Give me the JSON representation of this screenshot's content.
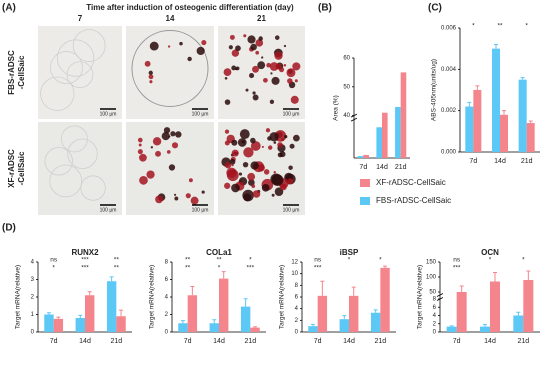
{
  "panel_labels": [
    "(A)",
    "(B)",
    "(C)",
    "(D)"
  ],
  "images": {
    "title": "Time after induction of osteogenic differentiation (day)",
    "columns": [
      "7",
      "14",
      "21"
    ],
    "rows": [
      [
        "FBS-rADSC",
        "-CellSaic"
      ],
      [
        "XF-rADSC",
        "-CellSaic"
      ]
    ],
    "scale_bar": "100 µm"
  },
  "chart_data": [
    {
      "type": "bar",
      "ylabel": "Area (%)",
      "categories": [
        "7d",
        "14d",
        "21d"
      ],
      "ylim": [
        0,
        60
      ],
      "ybreak": [
        10,
        40
      ],
      "yticks": [
        40,
        50,
        60
      ],
      "series": [
        {
          "name": "FBS-rADSC-CellSaic",
          "color": "#5bc8f5",
          "values": [
            0.5,
            8,
            43
          ]
        },
        {
          "name": "XF-rADSC-CellSaic",
          "color": "#f4858c",
          "values": [
            0.8,
            41,
            55
          ]
        }
      ]
    },
    {
      "type": "bar",
      "ylabel": "ABS-405nm(units/ug)",
      "categories": [
        "7d",
        "14d",
        "21d"
      ],
      "ylim": [
        0,
        0.006
      ],
      "yticks": [
        {
          "value": 0,
          "label": "0.000"
        },
        {
          "value": 0.002,
          "label": "0.002"
        },
        {
          "value": 0.004,
          "label": "0.004"
        },
        {
          "value": 0.006,
          "label": "0.006"
        }
      ],
      "series": [
        {
          "name": "FBS-rADSC-CellSaic",
          "color": "#5bc8f5",
          "values": [
            0.0022,
            0.005,
            0.0035
          ],
          "errors": [
            0.0002,
            0.0002,
            0.0001
          ]
        },
        {
          "name": "XF-rADSC-CellSaic",
          "color": "#f4858c",
          "values": [
            0.003,
            0.0018,
            0.0014
          ],
          "errors": [
            0.0002,
            0.0002,
            0.0001
          ]
        }
      ],
      "annotations": [
        "*",
        "**",
        "*"
      ]
    },
    {
      "type": "bar",
      "title": "RUNX2",
      "ylabel": "Target mRNA(relative)",
      "categories": [
        "7d",
        "14d",
        "21d"
      ],
      "ylim": [
        0,
        4
      ],
      "yticks": [
        0,
        1,
        2,
        3,
        4
      ],
      "series": [
        {
          "name": "FBS-rADSC-CellSaic",
          "color": "#5bc8f5",
          "values": [
            1.0,
            0.8,
            2.9
          ],
          "errors": [
            0.1,
            0.15,
            0.25
          ]
        },
        {
          "name": "XF-rADSC-CellSaic",
          "color": "#f4858c",
          "values": [
            0.75,
            2.1,
            0.9
          ],
          "errors": [
            0.1,
            0.2,
            0.35
          ]
        }
      ],
      "annotations": [
        "ns",
        "***",
        "**",
        "*",
        "***",
        "**"
      ]
    },
    {
      "type": "bar",
      "title": "COLa1",
      "ylabel": "Target mRNA(relative)",
      "categories": [
        "7d",
        "14d",
        "21d"
      ],
      "ylim": [
        0,
        8
      ],
      "yticks": [
        0,
        2,
        4,
        6,
        8
      ],
      "series": [
        {
          "name": "FBS-rADSC-CellSaic",
          "color": "#5bc8f5",
          "values": [
            1.0,
            1.0,
            2.9
          ],
          "errors": [
            0.3,
            0.4,
            0.9
          ]
        },
        {
          "name": "XF-rADSC-CellSaic",
          "color": "#f4858c",
          "values": [
            4.2,
            6.1,
            0.5
          ],
          "errors": [
            1.0,
            0.8,
            0.1
          ]
        }
      ],
      "annotations": [
        "**",
        "**",
        "*",
        "**",
        "*",
        "***"
      ]
    },
    {
      "type": "bar",
      "title": "iBSP",
      "ylabel": "Target mRNA(relative)",
      "categories": [
        "7d",
        "14d",
        "21d"
      ],
      "ylim": [
        0,
        12
      ],
      "yticks": [
        0,
        2,
        4,
        6,
        8,
        10,
        12
      ],
      "series": [
        {
          "name": "FBS-rADSC-CellSaic",
          "color": "#5bc8f5",
          "values": [
            1.0,
            2.2,
            3.3
          ],
          "errors": [
            0.3,
            0.6,
            0.5
          ]
        },
        {
          "name": "XF-rADSC-CellSaic",
          "color": "#f4858c",
          "values": [
            6.2,
            6.2,
            11
          ],
          "errors": [
            2.5,
            1.5,
            0.3
          ]
        }
      ],
      "annotations": [
        "ns",
        "*",
        "*",
        "***"
      ]
    },
    {
      "type": "bar",
      "title": "OCN",
      "ylabel": "Target mRNA(relative)",
      "categories": [
        "7d",
        "14d",
        "21d"
      ],
      "ylim": [
        0,
        150
      ],
      "ybreak": [
        8,
        40
      ],
      "yticks": [
        0,
        2,
        4,
        6,
        8,
        50,
        100,
        150
      ],
      "series": [
        {
          "name": "FBS-rADSC-CellSaic",
          "color": "#5bc8f5",
          "values": [
            1.3,
            1.3,
            4
          ],
          "errors": [
            0.2,
            0.5,
            0.8
          ]
        },
        {
          "name": "XF-rADSC-CellSaic",
          "color": "#f4858c",
          "values": [
            50,
            85,
            90
          ],
          "errors": [
            20,
            30,
            30
          ]
        }
      ],
      "annotations": [
        "ns",
        "*",
        "*",
        "***"
      ]
    }
  ]
}
